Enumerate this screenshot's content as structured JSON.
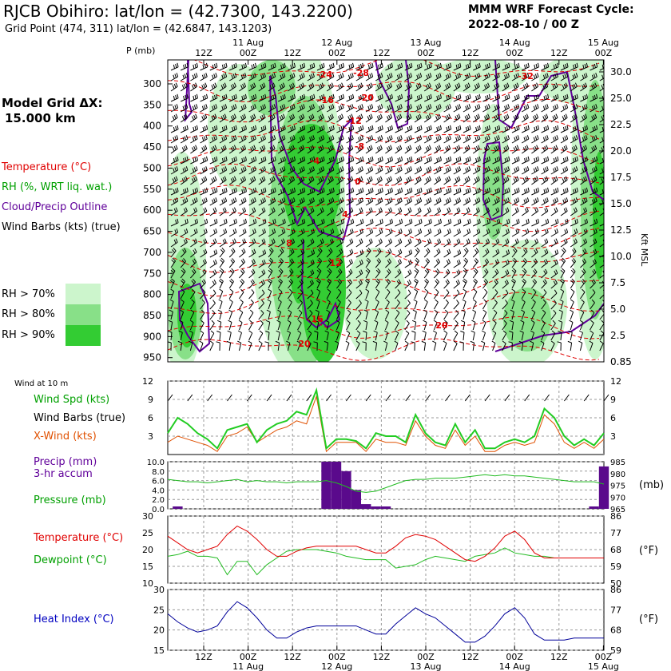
{
  "header": {
    "title": "RJCB Obihiro:  lat/lon = (42.7300, 143.2200)",
    "subtitle": "Grid Point (474, 311) lat/lon = (42.6847, 143.1203)",
    "cycle_line1": "MMM WRF Forecast Cycle:",
    "cycle_line2": "2022-08-10 / 00  Z"
  },
  "left_labels": {
    "model_grid_line1": "Model Grid ΔX:",
    "model_grid_line2": "15.000 km",
    "temperature": "Temperature (°C)",
    "rh": "RH (%, WRT liq. wat.)",
    "cloud": "Cloud/Precip Outline",
    "wind_barbs": "Wind Barbs (kts) (true)",
    "rh70": "RH > 70%",
    "rh80": "RH > 80%",
    "rh90": "RH > 90%",
    "wind_at_10m": "Wind at 10 m",
    "wind_spd": "Wind Spd (kts)",
    "wind_barbs_true": "Wind Barbs (true)",
    "xwind": "X-Wind (kts)",
    "precip_line1": "Precip (mm)",
    "precip_line2": "3-hr accum",
    "pressure": "Pressure (mb)",
    "temp2": "Temperature (°C)",
    "dewpoint": "Dewpoint (°C)",
    "heat_index": "Heat Index (°C)",
    "p_axis_label": "P (mb)",
    "kft_label": "Kft MSL",
    "mb_unit": "(mb)",
    "f_unit1": "(°F)",
    "f_unit2": "(°F)"
  },
  "colors": {
    "rh70": "#ccf5cc",
    "rh80": "#88e088",
    "rh90": "#33cc33",
    "temperature": "#e00000",
    "dewpoint": "#22bb22",
    "cloud_outline": "#60009a",
    "precip": "#5a0a8c",
    "heat_index": "#000099",
    "xwind": "#e05000"
  },
  "chart_data": [
    {
      "type": "heatmap",
      "name": "cross-section",
      "x_ticks_top": [
        "12Z",
        "00Z",
        "12Z",
        "00Z",
        "12Z",
        "00Z",
        "12Z",
        "00Z",
        "12Z",
        "00Z"
      ],
      "date_ticks": [
        "11 Aug",
        "12 Aug",
        "13 Aug",
        "14 Aug",
        "15 Aug"
      ],
      "pressure_ticks_mb": [
        300,
        350,
        400,
        450,
        500,
        550,
        600,
        650,
        700,
        750,
        800,
        850,
        900,
        950
      ],
      "height_ticks_kft": [
        "30.0",
        "25.0",
        "22.5",
        "20.0",
        "17.5",
        "15.0",
        "12.5",
        "10.0",
        "7.5",
        "5.0",
        "2.5",
        "0.85"
      ],
      "temperature_contour_labels": [
        "-24",
        "-28",
        "-16",
        "-20",
        "-12",
        "-8",
        "-4",
        "0",
        "4",
        "8",
        "12",
        "16",
        "20",
        "20",
        "-32"
      ],
      "rh_thresholds": [
        70,
        80,
        90
      ]
    },
    {
      "type": "line",
      "name": "wind",
      "ylim": [
        0,
        12
      ],
      "yticks": [
        3,
        6,
        9,
        12
      ],
      "series": [
        {
          "name": "Wind Spd (kts)",
          "values": [
            3.5,
            6,
            5,
            3.5,
            2.5,
            1,
            4,
            4.5,
            5,
            2,
            4,
            5,
            5.5,
            7,
            6.5,
            10.5,
            1,
            2.5,
            2.5,
            2.2,
            1,
            3.5,
            3,
            3,
            2,
            6.5,
            3.5,
            2,
            1.5,
            5,
            2,
            4,
            1,
            1,
            2,
            2.5,
            2,
            3,
            7.5,
            6,
            3,
            1.5,
            2.5,
            1.5,
            3.5
          ]
        },
        {
          "name": "X-Wind (kts)",
          "values": [
            2,
            3,
            2.5,
            2,
            1.5,
            0.5,
            3,
            3.5,
            4.5,
            2,
            3,
            4,
            4.5,
            5.5,
            5,
            9.5,
            0.5,
            2,
            2,
            2,
            0.5,
            2.5,
            2,
            2,
            1.5,
            5.5,
            3,
            1.5,
            1,
            4,
            1.5,
            3,
            0.5,
            0.5,
            1.5,
            2,
            1.5,
            2,
            6.5,
            5,
            2,
            1,
            2,
            1,
            2.5
          ]
        }
      ]
    },
    {
      "type": "bar",
      "name": "precip-pressure",
      "precip_ylim": [
        0,
        10
      ],
      "precip_yticks": [
        "0.0",
        "2.0",
        "4.0",
        "6.0",
        "8.0",
        "10.0"
      ],
      "pressure_ylim": [
        965,
        985
      ],
      "pressure_yticks": [
        965,
        970,
        975,
        980,
        985
      ],
      "precip_bars": [
        {
          "x": 1,
          "value": 0.5
        },
        {
          "x": 16,
          "value": 10
        },
        {
          "x": 17,
          "value": 10
        },
        {
          "x": 18,
          "value": 8
        },
        {
          "x": 19,
          "value": 4
        },
        {
          "x": 20,
          "value": 1
        },
        {
          "x": 21,
          "value": 0.5
        },
        {
          "x": 22,
          "value": 0.5
        },
        {
          "x": 43,
          "value": 0.5
        },
        {
          "x": 44,
          "value": 9
        }
      ],
      "pressure_values": [
        977.5,
        977,
        976.5,
        976.5,
        976,
        976.5,
        977,
        977.5,
        976.5,
        977,
        976.5,
        976.5,
        976,
        976.5,
        976.5,
        976.5,
        977,
        976,
        974.5,
        972.5,
        972,
        972.5,
        974,
        975.5,
        977,
        977.5,
        977.5,
        978,
        978,
        978,
        978.5,
        979,
        979.5,
        979,
        979.5,
        979,
        979,
        978.5,
        978,
        977.5,
        977,
        976.5,
        976.5,
        976.5,
        975.5
      ]
    },
    {
      "type": "line",
      "name": "temperature-dewpoint",
      "ylim": [
        10,
        30
      ],
      "yticks": [
        10,
        15,
        20,
        25,
        30
      ],
      "f_ticks": [
        50,
        59,
        68,
        77,
        86
      ],
      "series": [
        {
          "name": "Temperature (°C)",
          "values": [
            24,
            22,
            20,
            19,
            20,
            21,
            24.5,
            27,
            25.5,
            23,
            20,
            18,
            18,
            19.5,
            20.5,
            21,
            21,
            21,
            21,
            21,
            20,
            19,
            19,
            21,
            23.5,
            24.5,
            24,
            23,
            21,
            19,
            17,
            16.5,
            18,
            20.5,
            24,
            25.5,
            23,
            19,
            17.5,
            17.5,
            17.5,
            17.5,
            17.5,
            17.5,
            17.5
          ]
        },
        {
          "name": "Dewpoint (°C)",
          "values": [
            18,
            18.5,
            19.5,
            18,
            18,
            17.5,
            12.5,
            16.5,
            16.5,
            12.5,
            15.5,
            17.5,
            19.5,
            20,
            20,
            20,
            19.5,
            19,
            18,
            17.5,
            17,
            17,
            17,
            14.5,
            15,
            15.5,
            17,
            18,
            17.5,
            17,
            16.5,
            18,
            18.5,
            19,
            20.5,
            19,
            18.5,
            18,
            18,
            17.5,
            17.5,
            17.5,
            17.5,
            17.5,
            17.5
          ]
        }
      ]
    },
    {
      "type": "line",
      "name": "heat-index",
      "ylim": [
        15,
        30
      ],
      "yticks": [
        15,
        20,
        25,
        30
      ],
      "f_ticks": [
        59,
        68,
        77,
        86
      ],
      "series": [
        {
          "name": "Heat Index (°C)",
          "values": [
            24,
            22,
            20.5,
            19.5,
            20,
            21,
            24.5,
            27,
            25.5,
            23,
            20,
            18,
            18,
            19.5,
            20.5,
            21,
            21,
            21,
            21,
            21,
            20,
            19,
            19,
            21.5,
            23.5,
            25.5,
            24,
            23,
            21,
            19,
            17,
            17,
            18.5,
            21,
            24,
            25.5,
            23,
            19,
            17.5,
            17.5,
            17.5,
            18,
            18,
            18,
            18
          ]
        }
      ]
    }
  ]
}
